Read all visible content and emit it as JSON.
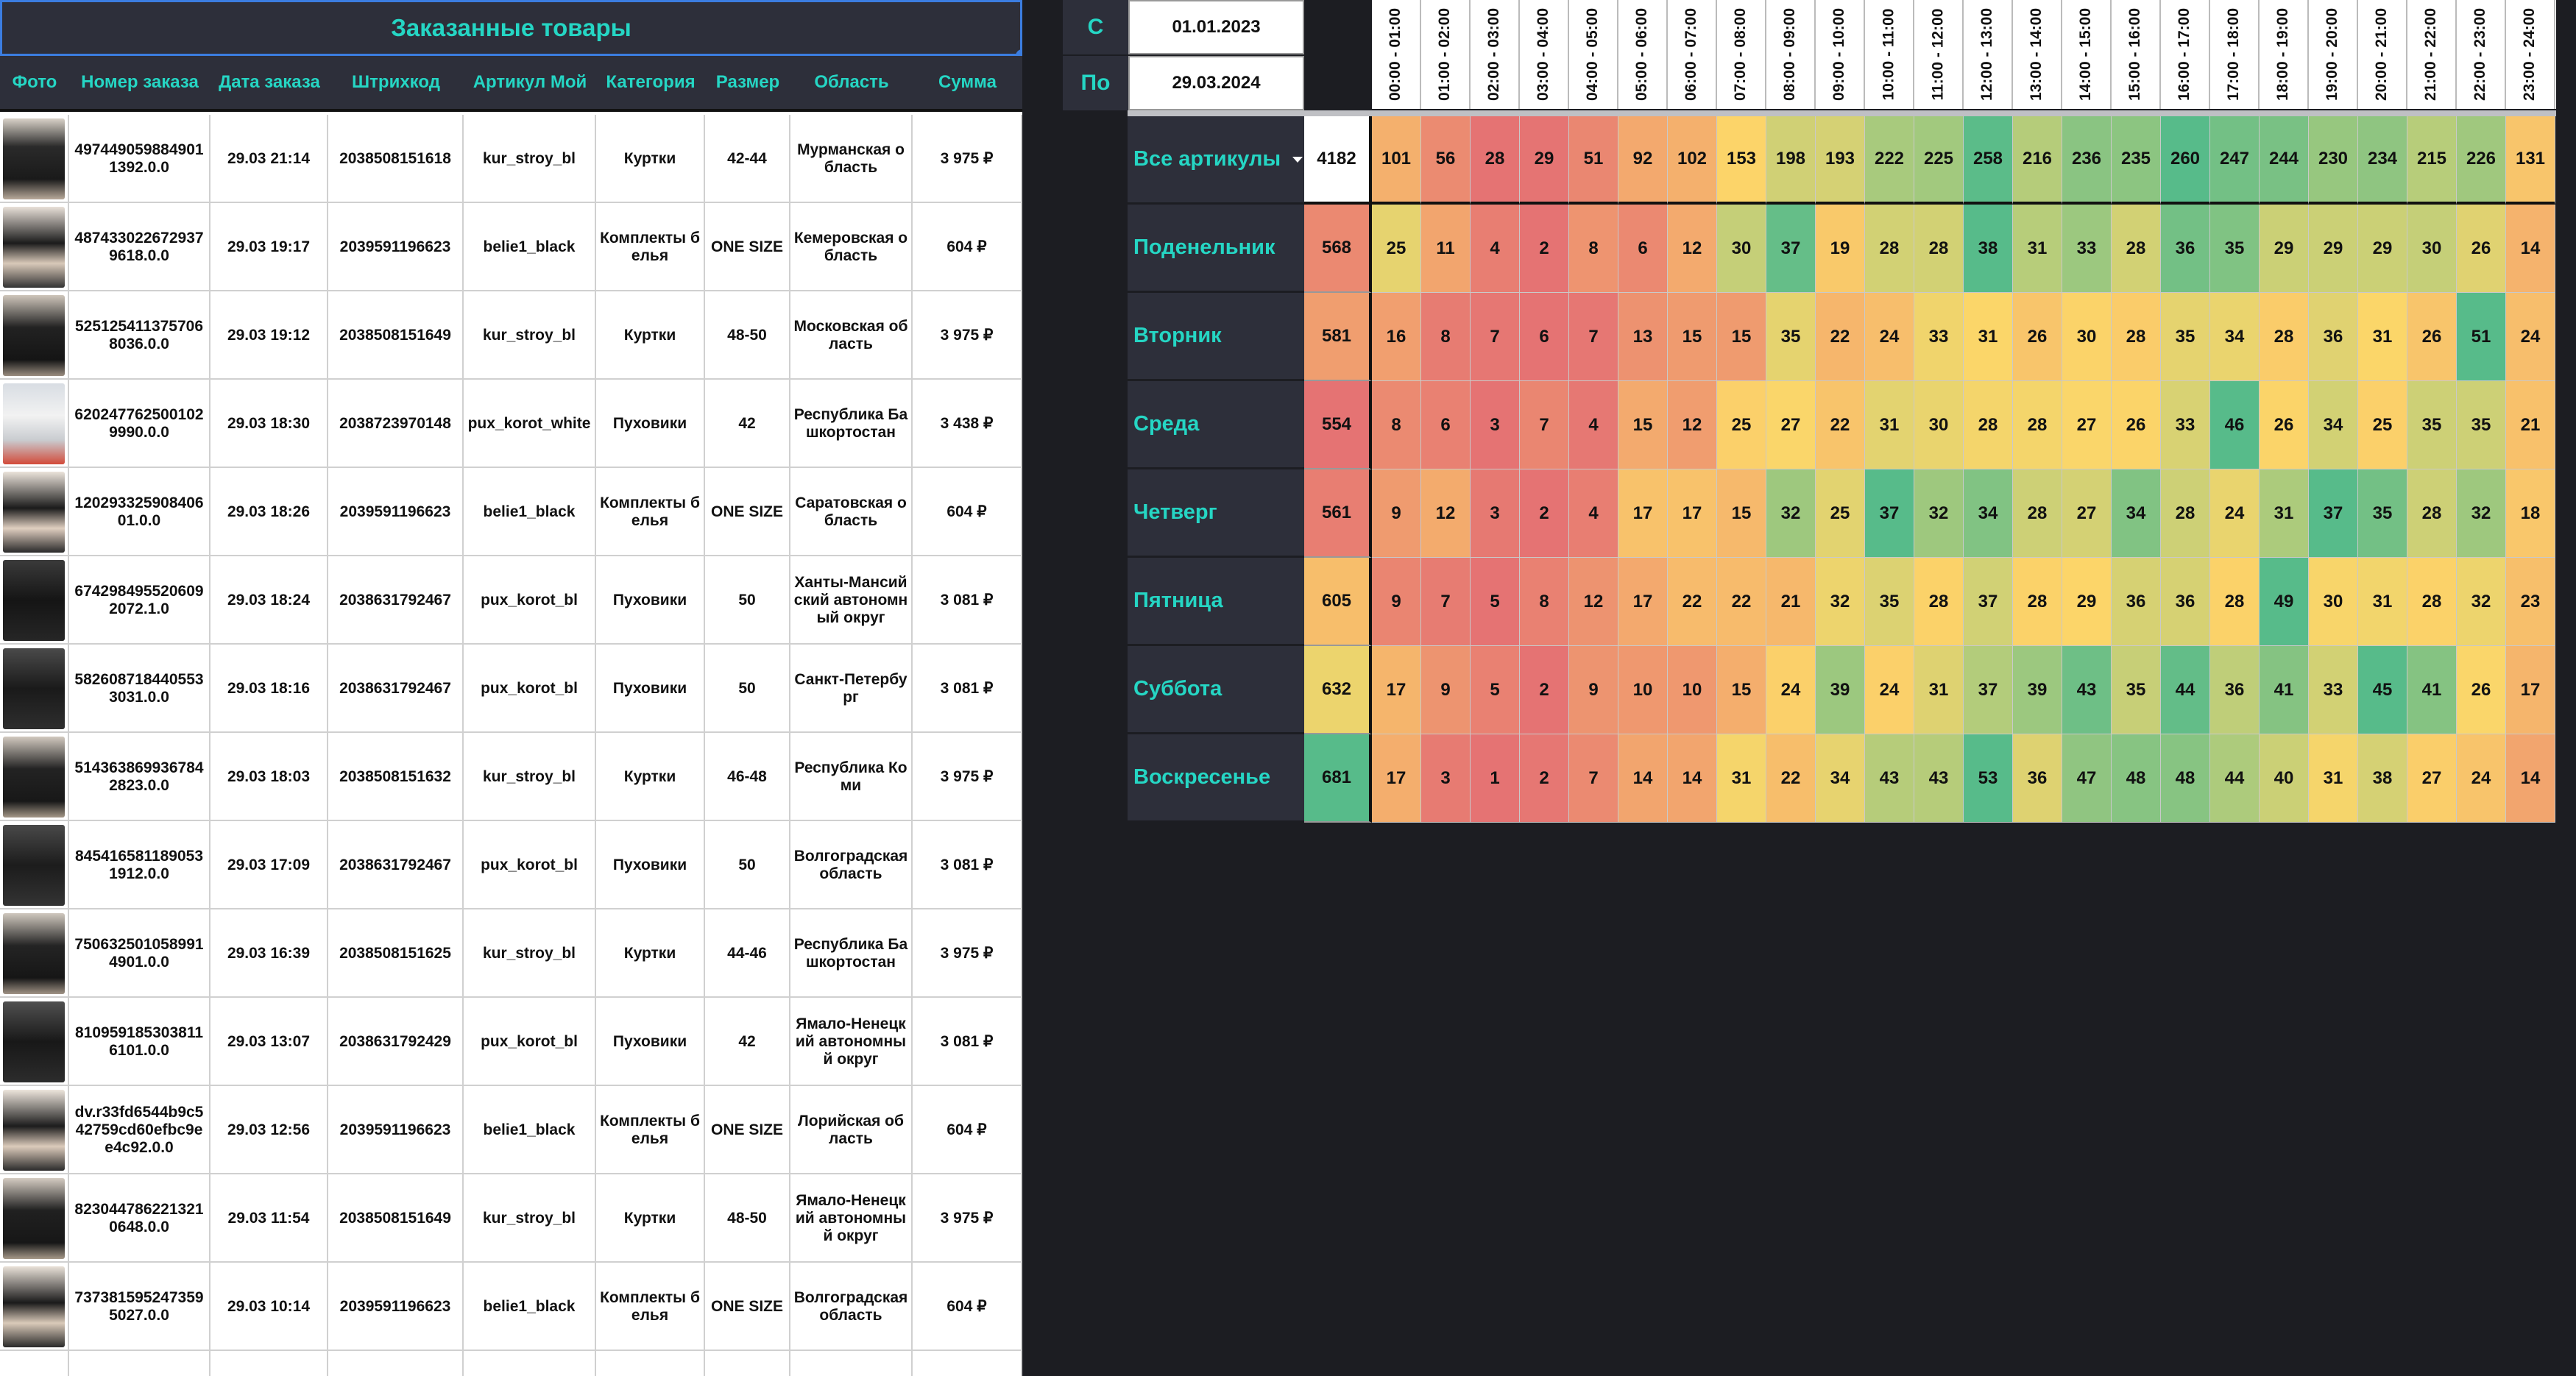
{
  "orders": {
    "title": "Заказанные товары",
    "columns": [
      "Фото",
      "Номер заказа",
      "Дата заказа",
      "Штрихкод",
      "Артикул Мой",
      "Категория",
      "Размер",
      "Область",
      "Сумма"
    ],
    "rows": [
      {
        "order": "4974490598849011392.0.0",
        "date": "29.03 21:14",
        "barcode": "2038508151618",
        "article": "kur_stroy_bl",
        "category": "Куртки",
        "size": "42-44",
        "region": "Мурманская область",
        "sum": "3 975 ₽"
      },
      {
        "order": "4874330226729379618.0.0",
        "date": "29.03 19:17",
        "barcode": "2039591196623",
        "article": "belie1_black",
        "category": "Комплекты белья",
        "size": "ONE SIZE",
        "region": "Кемеровская область",
        "sum": "604 ₽"
      },
      {
        "order": "5251254113757068036.0.0",
        "date": "29.03 19:12",
        "barcode": "2038508151649",
        "article": "kur_stroy_bl",
        "category": "Куртки",
        "size": "48-50",
        "region": "Московская область",
        "sum": "3 975 ₽"
      },
      {
        "order": "6202477625001029990.0.0",
        "date": "29.03 18:30",
        "barcode": "2038723970148",
        "article": "pux_korot_white",
        "category": "Пуховики",
        "size": "42",
        "region": "Республика Башкортостан",
        "sum": "3 438 ₽"
      },
      {
        "order": "12029332590840601.0.0",
        "date": "29.03 18:26",
        "barcode": "2039591196623",
        "article": "belie1_black",
        "category": "Комплекты белья",
        "size": "ONE SIZE",
        "region": "Саратовская область",
        "sum": "604 ₽"
      },
      {
        "order": "6742984955206092072.1.0",
        "date": "29.03 18:24",
        "barcode": "2038631792467",
        "article": "pux_korot_bl",
        "category": "Пуховики",
        "size": "50",
        "region": "Ханты-Мансийский автономный округ",
        "sum": "3 081 ₽"
      },
      {
        "order": "5826087184405533031.0.0",
        "date": "29.03 18:16",
        "barcode": "2038631792467",
        "article": "pux_korot_bl",
        "category": "Пуховики",
        "size": "50",
        "region": "Санкт-Петербург",
        "sum": "3 081 ₽"
      },
      {
        "order": "5143638699367842823.0.0",
        "date": "29.03 18:03",
        "barcode": "2038508151632",
        "article": "kur_stroy_bl",
        "category": "Куртки",
        "size": "46-48",
        "region": "Республика Коми",
        "sum": "3 975 ₽"
      },
      {
        "order": "8454165811890531912.0.0",
        "date": "29.03 17:09",
        "barcode": "2038631792467",
        "article": "pux_korot_bl",
        "category": "Пуховики",
        "size": "50",
        "region": "Волгоградская область",
        "sum": "3 081 ₽"
      },
      {
        "order": "7506325010589914901.0.0",
        "date": "29.03 16:39",
        "barcode": "2038508151625",
        "article": "kur_stroy_bl",
        "category": "Куртки",
        "size": "44-46",
        "region": "Республика Башкортостан",
        "sum": "3 975 ₽"
      },
      {
        "order": "8109591853038116101.0.0",
        "date": "29.03 13:07",
        "barcode": "2038631792429",
        "article": "pux_korot_bl",
        "category": "Пуховики",
        "size": "42",
        "region": "Ямало-Ненецкий автономный округ",
        "sum": "3 081 ₽"
      },
      {
        "order": "dv.r33fd6544b9c542759cd60efbc9ee4c92.0.0",
        "date": "29.03 12:56",
        "barcode": "2039591196623",
        "article": "belie1_black",
        "category": "Комплекты белья",
        "size": "ONE SIZE",
        "region": "Лорийская область",
        "sum": "604 ₽"
      },
      {
        "order": "8230447862213210648.0.0",
        "date": "29.03 11:54",
        "barcode": "2038508151649",
        "article": "kur_stroy_bl",
        "category": "Куртки",
        "size": "48-50",
        "region": "Ямало-Ненецкий автономный округ",
        "sum": "3 975 ₽"
      },
      {
        "order": "7373815952473595027.0.0",
        "date": "29.03 10:14",
        "barcode": "2039591196623",
        "article": "belie1_black",
        "category": "Комплекты белья",
        "size": "ONE SIZE",
        "region": "Волгоградская область",
        "sum": "604 ₽"
      }
    ]
  },
  "date_filter": {
    "from_label": "С",
    "from_value": "01.01.2023",
    "to_label": "По",
    "to_value": "29.03.2024"
  },
  "heatmap": {
    "hours": [
      "00:00 - 01:00",
      "01:00 - 02:00",
      "02:00 - 03:00",
      "03:00 - 04:00",
      "04:00 - 05:00",
      "05:00 - 06:00",
      "06:00 - 07:00",
      "07:00 - 08:00",
      "08:00 - 09:00",
      "09:00 - 10:00",
      "10:00 - 11:00",
      "11:00 - 12:00",
      "12:00 - 13:00",
      "13:00 - 14:00",
      "14:00 - 15:00",
      "15:00 - 16:00",
      "16:00 - 17:00",
      "17:00 - 18:00",
      "18:00 - 19:00",
      "19:00 - 20:00",
      "20:00 - 21:00",
      "21:00 - 22:00",
      "22:00 - 23:00",
      "23:00 - 24:00"
    ],
    "rows": [
      {
        "label": "Все артикулы",
        "dropdown": true,
        "total": "4182",
        "values": [
          101,
          56,
          28,
          29,
          51,
          92,
          102,
          153,
          198,
          193,
          222,
          225,
          258,
          216,
          236,
          235,
          260,
          247,
          244,
          230,
          234,
          215,
          226,
          131
        ]
      },
      {
        "label": "Поденельник",
        "total": "568",
        "values": [
          25,
          11,
          4,
          2,
          8,
          6,
          12,
          30,
          37,
          19,
          28,
          28,
          38,
          31,
          33,
          28,
          36,
          35,
          29,
          29,
          29,
          30,
          26,
          14
        ]
      },
      {
        "label": "Вторник",
        "total": "581",
        "values": [
          16,
          8,
          7,
          6,
          7,
          13,
          15,
          15,
          35,
          22,
          24,
          33,
          31,
          26,
          30,
          28,
          35,
          34,
          28,
          36,
          31,
          26,
          51,
          24
        ]
      },
      {
        "label": "Среда",
        "total": "554",
        "values": [
          8,
          6,
          3,
          7,
          4,
          15,
          12,
          25,
          27,
          22,
          31,
          30,
          28,
          28,
          27,
          26,
          33,
          46,
          26,
          34,
          25,
          35,
          35,
          21
        ]
      },
      {
        "label": "Четверг",
        "total": "561",
        "values": [
          9,
          12,
          3,
          2,
          4,
          17,
          17,
          15,
          32,
          25,
          37,
          32,
          34,
          28,
          27,
          34,
          28,
          24,
          31,
          37,
          35,
          28,
          32,
          18
        ]
      },
      {
        "label": "Пятница",
        "total": "605",
        "values": [
          9,
          7,
          5,
          8,
          12,
          17,
          22,
          22,
          21,
          32,
          35,
          28,
          37,
          28,
          29,
          36,
          36,
          28,
          49,
          30,
          31,
          28,
          32,
          23
        ]
      },
      {
        "label": "Суббота",
        "total": "632",
        "values": [
          17,
          9,
          5,
          2,
          9,
          10,
          10,
          15,
          24,
          39,
          24,
          31,
          37,
          39,
          43,
          35,
          44,
          36,
          41,
          33,
          45,
          41,
          26,
          17
        ]
      },
      {
        "label": "Воскресенье",
        "total": "681",
        "values": [
          17,
          3,
          1,
          2,
          7,
          14,
          14,
          31,
          22,
          34,
          43,
          43,
          53,
          36,
          47,
          48,
          48,
          44,
          40,
          31,
          38,
          27,
          24,
          14
        ]
      }
    ]
  }
}
